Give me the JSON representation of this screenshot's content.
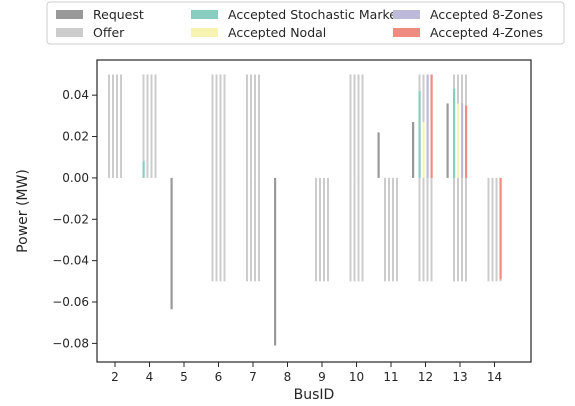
{
  "chart_data": {
    "type": "bar",
    "xlabel": "BusID",
    "ylabel": "Power (MW)",
    "ylim": [
      -0.089,
      0.057
    ],
    "yticks": [
      -0.08,
      -0.06,
      -0.04,
      -0.02,
      0.0,
      0.02,
      0.04
    ],
    "ytick_labels": [
      "−0.08",
      "−0.06",
      "−0.04",
      "−0.02",
      "0.00",
      "0.02",
      "0.04"
    ],
    "categories": [
      "2",
      "4",
      "5",
      "6",
      "7",
      "8",
      "9",
      "10",
      "11",
      "12",
      "13",
      "14"
    ],
    "grid": false,
    "legend_position": "top",
    "legend": [
      {
        "name": "Request",
        "color": "#999999"
      },
      {
        "name": "Offer",
        "color": "#cccccc"
      },
      {
        "name": "Accepted Stochastic Market",
        "color": "#88cdc0"
      },
      {
        "name": "Accepted Nodal",
        "color": "#f7f4b2"
      },
      {
        "name": "Accepted 8-Zones",
        "color": "#bcbad8"
      },
      {
        "name": "Accepted 4-Zones",
        "color": "#f08b7f"
      }
    ],
    "requests": [
      {
        "bus": "5",
        "value": -0.0635
      },
      {
        "bus": "8",
        "value": -0.081
      },
      {
        "bus": "11",
        "value": 0.022
      },
      {
        "bus": "12",
        "value": 0.027
      },
      {
        "bus": "13",
        "value": 0.036
      }
    ],
    "offers": [
      {
        "bus": "2",
        "positive": [
          0.05,
          0.05,
          0.05,
          0.05
        ],
        "negative": [
          0,
          0,
          0,
          0
        ]
      },
      {
        "bus": "4",
        "positive": [
          0.05,
          0.05,
          0.05,
          0.05
        ],
        "negative": [
          0,
          0,
          0,
          0
        ]
      },
      {
        "bus": "5",
        "positive": [
          0,
          0,
          0,
          0
        ],
        "negative": [
          0,
          0,
          0,
          0
        ]
      },
      {
        "bus": "6",
        "positive": [
          0.05,
          0.05,
          0.05,
          0.05
        ],
        "negative": [
          -0.05,
          -0.05,
          -0.05,
          -0.05
        ]
      },
      {
        "bus": "7",
        "positive": [
          0.05,
          0.05,
          0.05,
          0.05
        ],
        "negative": [
          -0.05,
          -0.05,
          -0.05,
          -0.05
        ]
      },
      {
        "bus": "8",
        "positive": [
          0,
          0,
          0,
          0
        ],
        "negative": [
          0,
          0,
          0,
          0
        ]
      },
      {
        "bus": "9",
        "positive": [
          0,
          0,
          0,
          0
        ],
        "negative": [
          -0.05,
          -0.05,
          -0.05,
          -0.05
        ]
      },
      {
        "bus": "10",
        "positive": [
          0.05,
          0.05,
          0.05,
          0.05
        ],
        "negative": [
          -0.05,
          -0.05,
          -0.05,
          -0.05
        ]
      },
      {
        "bus": "11",
        "positive": [
          0,
          0,
          0,
          0
        ],
        "negative": [
          -0.05,
          -0.05,
          -0.05,
          -0.05
        ]
      },
      {
        "bus": "12",
        "positive": [
          0.05,
          0.05,
          0.05,
          0.05
        ],
        "negative": [
          -0.05,
          -0.05,
          -0.05,
          -0.05
        ]
      },
      {
        "bus": "13",
        "positive": [
          0.05,
          0.05,
          0.05,
          0.05
        ],
        "negative": [
          -0.05,
          -0.05,
          -0.05,
          -0.05
        ]
      },
      {
        "bus": "14",
        "positive": [
          0,
          0,
          0,
          0
        ],
        "negative": [
          -0.05,
          -0.05,
          -0.05,
          -0.05
        ]
      }
    ],
    "accepted": [
      {
        "bus": "4",
        "series": "Accepted Stochastic Market",
        "value": 0.008
      },
      {
        "bus": "12",
        "series": "Accepted Stochastic Market",
        "value": 0.042
      },
      {
        "bus": "12",
        "series": "Accepted Nodal",
        "value": 0.027
      },
      {
        "bus": "12",
        "series": "Accepted 8-Zones",
        "value": 0.05
      },
      {
        "bus": "12",
        "series": "Accepted 4-Zones",
        "value": 0.05
      },
      {
        "bus": "13",
        "series": "Accepted Stochastic Market",
        "value": 0.043
      },
      {
        "bus": "13",
        "series": "Accepted Nodal",
        "value": 0.036
      },
      {
        "bus": "13",
        "series": "Accepted 8-Zones",
        "value": 0.036
      },
      {
        "bus": "13",
        "series": "Accepted 4-Zones",
        "value": 0.035
      },
      {
        "bus": "14",
        "series": "Accepted 4-Zones",
        "value": -0.049
      }
    ]
  }
}
